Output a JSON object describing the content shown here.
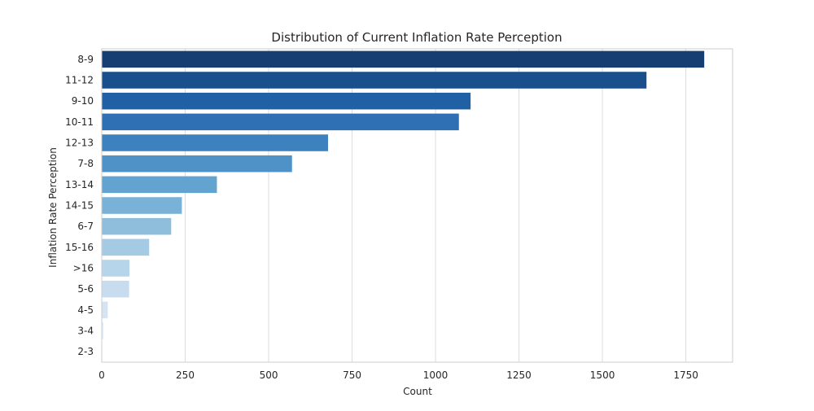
{
  "chart_data": {
    "type": "bar",
    "orientation": "horizontal",
    "title": "Distribution of Current Inflation Rate Perception",
    "xlabel": "Count",
    "ylabel": "Inflation Rate Perception",
    "categories": [
      "8-9",
      "11-12",
      "9-10",
      "10-11",
      "12-13",
      "7-8",
      "13-14",
      "14-15",
      "6-7",
      "15-16",
      ">16",
      "5-6",
      "4-5",
      "3-4",
      "2-3"
    ],
    "values": [
      1805,
      1632,
      1105,
      1070,
      678,
      570,
      345,
      240,
      208,
      142,
      83,
      82,
      18,
      5,
      0
    ],
    "xlim": [
      0,
      1890
    ],
    "xticks": [
      0,
      250,
      500,
      750,
      1000,
      1250,
      1500,
      1750
    ],
    "grid": "vertical",
    "palette": "Blues_r",
    "colors": [
      "#173e73",
      "#1a4f8d",
      "#2060a4",
      "#2f70b4",
      "#3d81bf",
      "#4f92c8",
      "#62a3d0",
      "#7ab2d7",
      "#8fbedd",
      "#a4cbe3",
      "#b7d5ea",
      "#c7ddef",
      "#d4e4f2",
      "#e0ecf7",
      "#eef4fb"
    ]
  }
}
